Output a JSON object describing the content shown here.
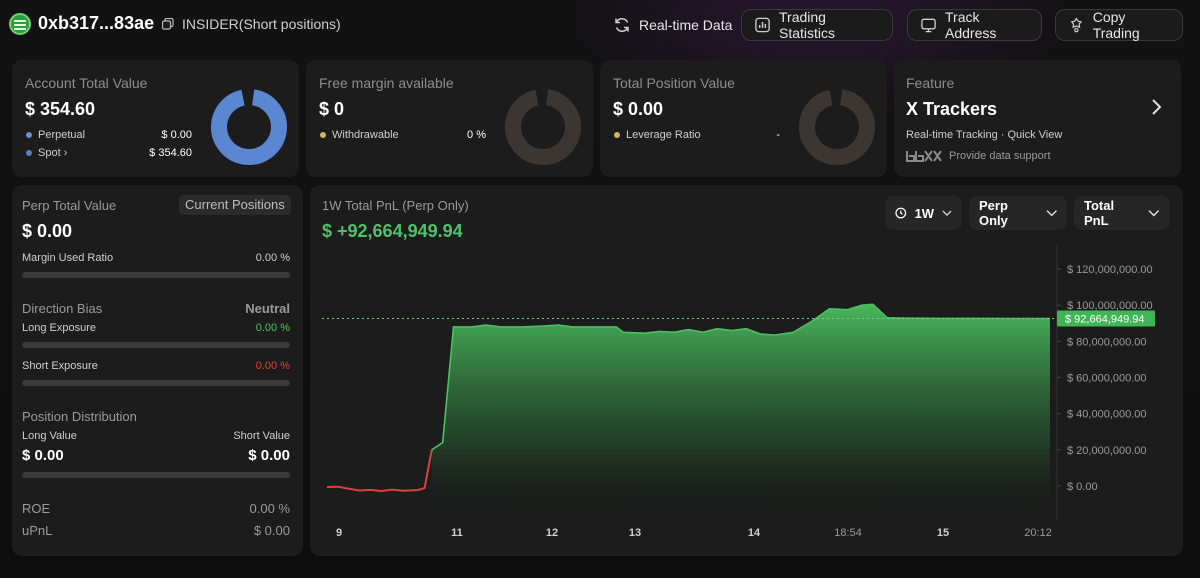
{
  "header": {
    "address": "0xb317...83ae",
    "tag": "INSIDER(Short positions)",
    "buttons": {
      "realtime": "Real-time Data",
      "stats": "Trading Statistics",
      "track": "Track Address",
      "copy": "Copy Trading"
    }
  },
  "cards": {
    "account": {
      "title": "Account Total Value",
      "value": "$ 354.60",
      "rows": [
        {
          "label": "Perpetual",
          "value": "$ 0.00",
          "color": "#6b8fd6"
        },
        {
          "label": "Spot",
          "value": "$ 354.60",
          "color": "#5b7fc9"
        }
      ],
      "donut_color": "#5b86d1"
    },
    "margin": {
      "title": "Free margin available",
      "value": "$ 0",
      "row_label": "Withdrawable",
      "row_value": "0 %",
      "dot_color": "#d8b35a"
    },
    "position": {
      "title": "Total Position Value",
      "value": "$ 0.00",
      "row_label": "Leverage Ratio",
      "row_value": "-",
      "dot_color": "#d8b35a"
    },
    "feature": {
      "title": "Feature",
      "value": "X Trackers",
      "sub": "Real-time Tracking · Quick View",
      "support": "Provide data support"
    }
  },
  "left": {
    "perp_title": "Perp Total Value",
    "current_positions": "Current Positions",
    "perp_value": "$ 0.00",
    "margin_used_label": "Margin Used Ratio",
    "margin_used_value": "0.00 %",
    "direction_title": "Direction Bias",
    "direction_value": "Neutral",
    "long_exposure_label": "Long Exposure",
    "long_exposure_value": "0.00 %",
    "short_exposure_label": "Short Exposure",
    "short_exposure_value": "0.00 %",
    "distribution_title": "Position Distribution",
    "long_value_label": "Long Value",
    "short_value_label": "Short Value",
    "long_value": "$ 0.00",
    "short_value": "$ 0.00",
    "roe_label": "ROE",
    "roe_value": "0.00 %",
    "upnl_label": "uPnL",
    "upnl_value": "$ 0.00",
    "green": "#4cc36a",
    "red": "#e2413b"
  },
  "chart_panel": {
    "title": "1W Total PnL (Perp Only)",
    "value": "$ +92,664,949.94",
    "dropdowns": {
      "range": "1W",
      "scope": "Perp Only",
      "metric": "Total PnL"
    }
  },
  "chart_data": {
    "type": "area",
    "x_ticks": [
      "9",
      "11",
      "12",
      "13",
      "14",
      "18:54",
      "15",
      "20:12"
    ],
    "y_ticks": [
      "$ 120,000,000.00",
      "$ 100,000,000.00",
      "$ 80,000,000.00",
      "$ 60,000,000.00",
      "$ 40,000,000.00",
      "$ 20,000,000.00",
      "$ 0.00"
    ],
    "ylim": [
      -5000000,
      125000000
    ],
    "current_label": "$ 92,664,949.94",
    "current_value": 92664949.94,
    "color_up": "#4cbf62",
    "color_down": "#d9423a",
    "points": [
      [
        0,
        -600000
      ],
      [
        0.015,
        -400000
      ],
      [
        0.03,
        -1500000
      ],
      [
        0.045,
        -2500000
      ],
      [
        0.06,
        -2200000
      ],
      [
        0.075,
        -2800000
      ],
      [
        0.09,
        -2000000
      ],
      [
        0.105,
        -2700000
      ],
      [
        0.125,
        -2300000
      ],
      [
        0.135,
        -1200000
      ],
      [
        0.145,
        20000000
      ],
      [
        0.16,
        24000000
      ],
      [
        0.175,
        88000000
      ],
      [
        0.2,
        88000000
      ],
      [
        0.22,
        89000000
      ],
      [
        0.24,
        88000000
      ],
      [
        0.27,
        88000000
      ],
      [
        0.3,
        88500000
      ],
      [
        0.32,
        89000000
      ],
      [
        0.34,
        88000000
      ],
      [
        0.38,
        88000000
      ],
      [
        0.4,
        88000000
      ],
      [
        0.41,
        85000000
      ],
      [
        0.44,
        84500000
      ],
      [
        0.46,
        85500000
      ],
      [
        0.48,
        85000000
      ],
      [
        0.5,
        86500000
      ],
      [
        0.52,
        85000000
      ],
      [
        0.54,
        87000000
      ],
      [
        0.56,
        86000000
      ],
      [
        0.58,
        87000000
      ],
      [
        0.6,
        84000000
      ],
      [
        0.62,
        83500000
      ],
      [
        0.645,
        85000000
      ],
      [
        0.67,
        91000000
      ],
      [
        0.695,
        98000000
      ],
      [
        0.72,
        97500000
      ],
      [
        0.74,
        100000000
      ],
      [
        0.755,
        100500000
      ],
      [
        0.775,
        93000000
      ],
      [
        0.8,
        92800000
      ],
      [
        0.85,
        92700000
      ],
      [
        0.9,
        92700000
      ],
      [
        0.95,
        92664949.94
      ],
      [
        1,
        92664949.94
      ]
    ]
  }
}
